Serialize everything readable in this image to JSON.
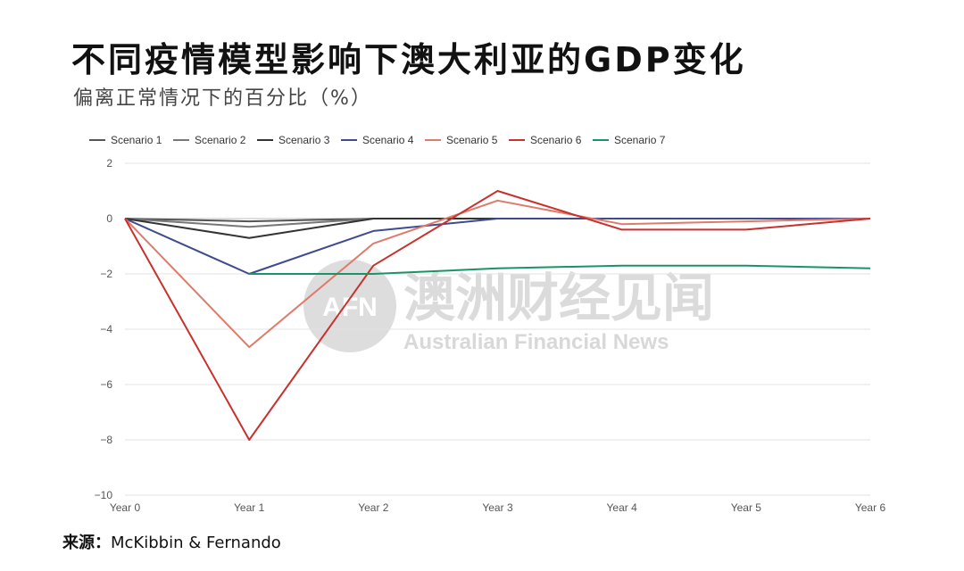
{
  "title": "不同疫情模型影响下澳大利亚的GDP变化",
  "subtitle": "偏离正常情况下的百分比（%）",
  "source": {
    "label": "来源：",
    "value": "McKibbin & Fernando"
  },
  "watermark": {
    "logo": "AFN",
    "cn": "澳洲财经见闻",
    "en": "Australian Financial News"
  },
  "chart_data": {
    "type": "line",
    "categories": [
      "Year 0",
      "Year 1",
      "Year 2",
      "Year 3",
      "Year 4",
      "Year 5",
      "Year 6"
    ],
    "ylim": [
      -10,
      2
    ],
    "yticks": [
      2,
      0,
      -2,
      -4,
      -6,
      -8,
      -10
    ],
    "ytick_labels": [
      "2",
      "0",
      "−2",
      "−4",
      "−6",
      "−8",
      "−10"
    ],
    "grid": true,
    "legend_position": "top",
    "series": [
      {
        "name": "Scenario 1",
        "color": "#555555",
        "values": [
          0,
          -0.1,
          0,
          0,
          0,
          0,
          0
        ]
      },
      {
        "name": "Scenario 2",
        "color": "#777777",
        "values": [
          0,
          -0.3,
          0,
          0,
          0,
          0,
          0
        ]
      },
      {
        "name": "Scenario 3",
        "color": "#333333",
        "values": [
          0,
          -0.7,
          0,
          0,
          0,
          0,
          0
        ]
      },
      {
        "name": "Scenario 4",
        "color": "#3f4a8f",
        "values": [
          0,
          -2.0,
          -0.45,
          0,
          0,
          0,
          0
        ]
      },
      {
        "name": "Scenario 5",
        "color": "#e07a6a",
        "values": [
          0,
          -4.65,
          -0.9,
          0.65,
          -0.2,
          -0.1,
          0
        ]
      },
      {
        "name": "Scenario 6",
        "color": "#c8312c",
        "values": [
          0,
          -8.0,
          -1.7,
          1.0,
          -0.4,
          -0.4,
          0
        ]
      },
      {
        "name": "Scenario 7",
        "color": "#1a9466",
        "values": [
          null,
          -2.0,
          -2.0,
          -1.8,
          -1.7,
          -1.7,
          -1.8
        ]
      }
    ]
  }
}
